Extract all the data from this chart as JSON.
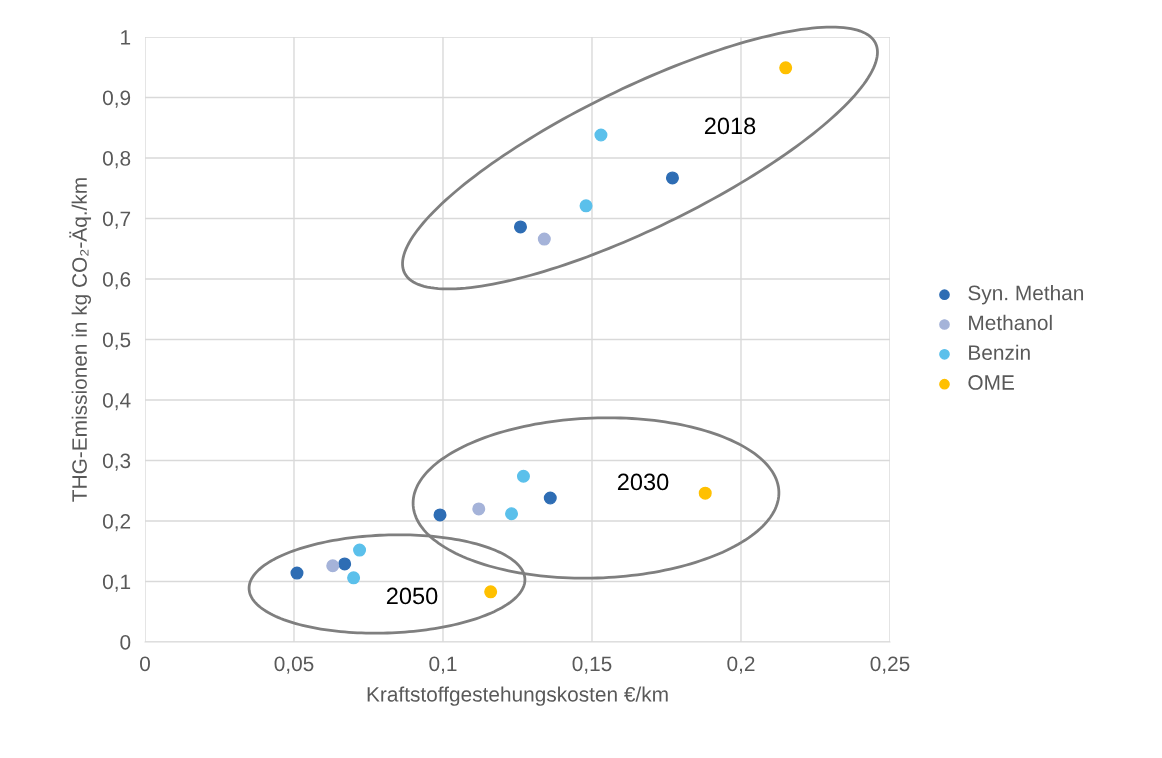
{
  "chart_data": {
    "type": "scatter",
    "xlabel": "Kraftstoffgestehungskosten €/km",
    "ylabel": "THG-Emissionen in kg CO₂-Äq./km",
    "xlim": [
      0,
      0.25
    ],
    "ylim": [
      0,
      1
    ],
    "xticks": [
      0,
      {
        "value": 0.05,
        "label": "0,05"
      },
      {
        "value": 0.1,
        "label": "0,1"
      },
      {
        "value": 0.15,
        "label": "0,15"
      },
      {
        "value": 0.2,
        "label": "0,2"
      },
      {
        "value": 0.25,
        "label": "0,25"
      }
    ],
    "yticks": [
      0,
      {
        "value": 0.1,
        "label": "0,1"
      },
      {
        "value": 0.2,
        "label": "0,2"
      },
      {
        "value": 0.3,
        "label": "0,3"
      },
      {
        "value": 0.4,
        "label": "0,4"
      },
      {
        "value": 0.5,
        "label": "0,5"
      },
      {
        "value": 0.6,
        "label": "0,6"
      },
      {
        "value": 0.7,
        "label": "0,7"
      },
      {
        "value": 0.8,
        "label": "0,8"
      },
      {
        "value": 0.9,
        "label": "0,9"
      },
      {
        "value": 1,
        "label": "1"
      }
    ],
    "grid": true,
    "legend": "right",
    "marker": "circle",
    "series": [
      {
        "name": "Syn. Methan",
        "color": "#2e6db4",
        "x": [
          0.051,
          0.067,
          0.099,
          0.136,
          0.126,
          0.177
        ],
        "values": [
          0.114,
          0.129,
          0.21,
          0.238,
          0.686,
          0.767
        ]
      },
      {
        "name": "Methanol",
        "color": "#a5b3d9",
        "x": [
          0.063,
          0.112,
          0.134
        ],
        "values": [
          0.126,
          0.22,
          0.666
        ]
      },
      {
        "name": "Benzin",
        "color": "#5bc0eb",
        "x": [
          0.072,
          0.07,
          0.127,
          0.123,
          0.148,
          0.153
        ],
        "values": [
          0.152,
          0.106,
          0.274,
          0.212,
          0.721,
          0.838
        ]
      },
      {
        "name": "OME",
        "color": "#ffc000",
        "x": [
          0.116,
          0.188,
          0.215
        ],
        "values": [
          0.083,
          0.246,
          0.949
        ]
      }
    ],
    "annotations": [
      "2018",
      "2030",
      "2050"
    ]
  }
}
